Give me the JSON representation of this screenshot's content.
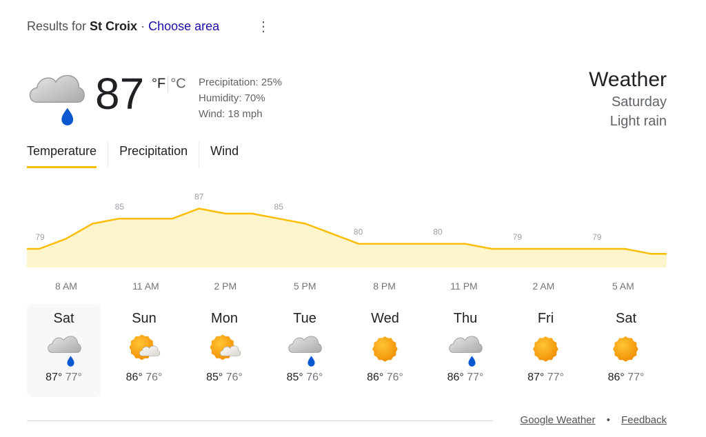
{
  "header": {
    "prefix": "Results for",
    "location": "St Croix",
    "separator": "·",
    "choose_area": "Choose area",
    "more_icon": "more-vert-icon"
  },
  "current": {
    "icon": "rain",
    "temperature": "87",
    "unit_f": "°F",
    "unit_c": "°C",
    "precipitation": "Precipitation: 25%",
    "humidity": "Humidity: 70%",
    "wind": "Wind: 18 mph"
  },
  "summary": {
    "title": "Weather",
    "day": "Saturday",
    "condition": "Light rain"
  },
  "tabs": [
    {
      "label": "Temperature",
      "active": true
    },
    {
      "label": "Precipitation"
    },
    {
      "label": "Wind"
    }
  ],
  "colors": {
    "accent": "#fbbc04",
    "fill": "#fef5cd",
    "link": "#1a0dab"
  },
  "chart_data": {
    "type": "area",
    "x_ticks": [
      "8 AM",
      "11 AM",
      "2 PM",
      "5 PM",
      "8 PM",
      "11 PM",
      "2 AM",
      "5 AM"
    ],
    "hourly_values": [
      79,
      81,
      84,
      85,
      85,
      85,
      87,
      86,
      86,
      85,
      84,
      82,
      80,
      80,
      80,
      80,
      80,
      79,
      79,
      79,
      79,
      79,
      79,
      78,
      78
    ],
    "value_labels": [
      "79",
      "85",
      "87",
      "85",
      "80",
      "80",
      "79",
      "79"
    ],
    "unit": "°F"
  },
  "days": [
    {
      "name": "Sat",
      "icon": "rain",
      "high": "87°",
      "low": "77°",
      "selected": true
    },
    {
      "name": "Sun",
      "icon": "partly-sunny",
      "high": "86°",
      "low": "76°"
    },
    {
      "name": "Mon",
      "icon": "partly-sunny",
      "high": "85°",
      "low": "76°"
    },
    {
      "name": "Tue",
      "icon": "rain",
      "high": "85°",
      "low": "76°"
    },
    {
      "name": "Wed",
      "icon": "sunny",
      "high": "86°",
      "low": "76°"
    },
    {
      "name": "Thu",
      "icon": "rain",
      "high": "86°",
      "low": "77°"
    },
    {
      "name": "Fri",
      "icon": "sunny",
      "high": "87°",
      "low": "77°"
    },
    {
      "name": "Sat",
      "icon": "sunny",
      "high": "86°",
      "low": "77°"
    }
  ],
  "footer": {
    "source": "Google Weather",
    "dot": "•",
    "feedback": "Feedback"
  }
}
